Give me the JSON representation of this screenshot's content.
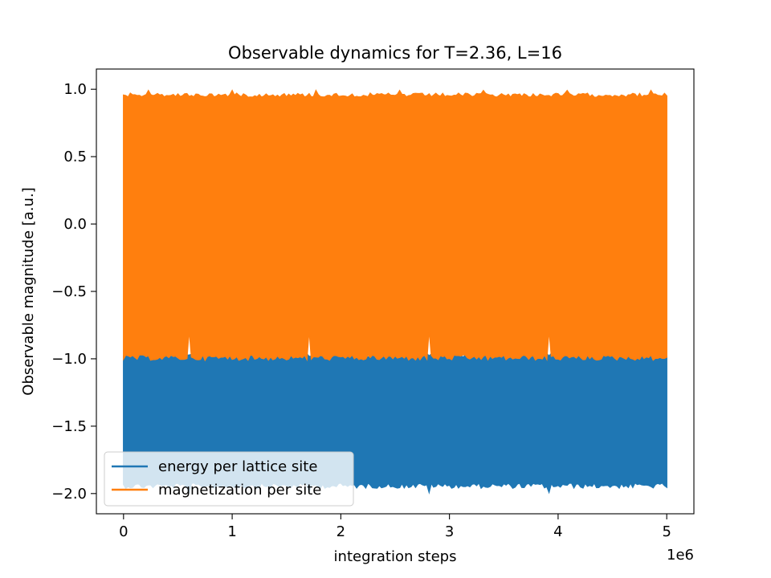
{
  "chart_data": {
    "type": "area",
    "title": "Observable dynamics for T=2.36, L=16",
    "xlabel": "integration steps",
    "ylabel": "Observable magnitude [a.u.]",
    "x_offset_text": "1e6",
    "xlim": [
      -0.25,
      5.25
    ],
    "ylim": [
      -2.15,
      1.15
    ],
    "x_data_range": [
      0,
      5
    ],
    "x_ticks": [
      0,
      1,
      2,
      3,
      4,
      5
    ],
    "x_tick_labels": [
      "0",
      "1",
      "2",
      "3",
      "4",
      "5"
    ],
    "y_ticks": [
      1.0,
      0.5,
      0.0,
      -0.5,
      -1.0,
      -1.5,
      -2.0
    ],
    "y_tick_labels": [
      "1.0",
      "0.5",
      "0.0",
      "−0.5",
      "−1.0",
      "−1.5",
      "−2.0"
    ],
    "grid": false,
    "legend_position": "lower left",
    "series": [
      {
        "name": "energy per lattice site",
        "color": "#1f77b4",
        "band": {
          "upper": -0.96,
          "lower": -1.92,
          "upper_spikes": [
            -0.87,
            -0.9
          ],
          "lower_spikes": [
            -1.99,
            -1.97
          ]
        }
      },
      {
        "name": "magnetization per site",
        "color": "#ff7f0e",
        "band": {
          "upper": 0.97,
          "lower": -0.97,
          "upper_spikes": [
            0.99,
            0.98
          ],
          "lower_spikes": [
            -0.78,
            -1.0
          ]
        }
      }
    ]
  }
}
